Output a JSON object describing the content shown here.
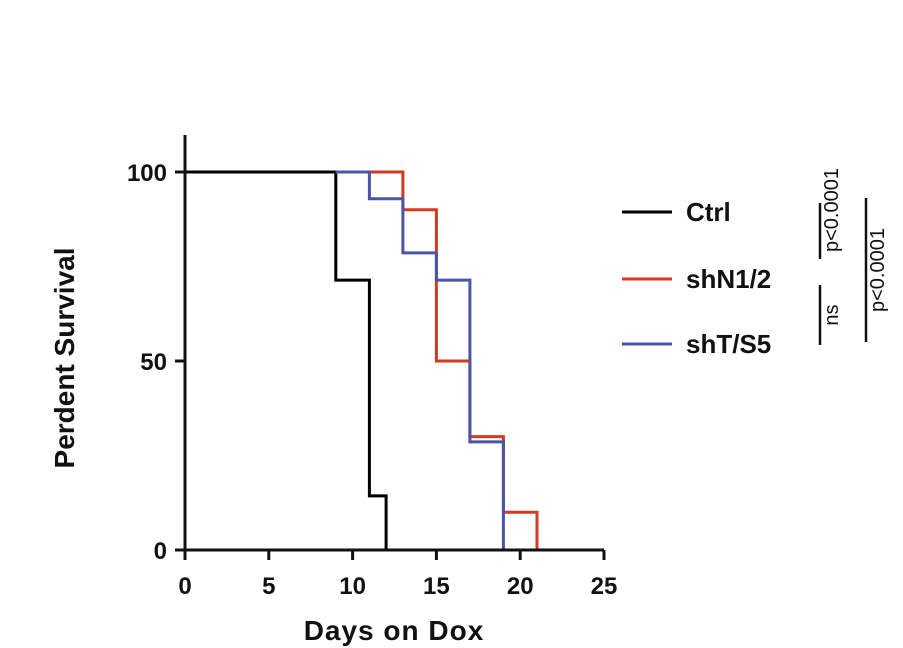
{
  "chart_data": {
    "type": "line",
    "subtype": "kaplan-meier-step",
    "xlabel": "Days on Dox",
    "ylabel": "Perdent Survival",
    "xlim": [
      0,
      25
    ],
    "ylim": [
      0,
      100
    ],
    "xticks": [
      0,
      5,
      10,
      15,
      20,
      25
    ],
    "yticks": [
      0,
      50,
      100
    ],
    "grid": false,
    "legend_position": "right",
    "series": [
      {
        "name": "Ctrl",
        "color": "#000000",
        "steps": [
          [
            0,
            100
          ],
          [
            9,
            100
          ],
          [
            9,
            71.4
          ],
          [
            11,
            71.4
          ],
          [
            11,
            14.3
          ],
          [
            12,
            14.3
          ],
          [
            12,
            0
          ]
        ]
      },
      {
        "name": "shN1/2",
        "color": "#d63a1e",
        "steps": [
          [
            9,
            100
          ],
          [
            13,
            100
          ],
          [
            13,
            90
          ],
          [
            15,
            90
          ],
          [
            15,
            50
          ],
          [
            17,
            50
          ],
          [
            17,
            30
          ],
          [
            19,
            30
          ],
          [
            19,
            10
          ],
          [
            21,
            10
          ],
          [
            21,
            0
          ]
        ]
      },
      {
        "name": "shT/S5",
        "color": "#4a55a8",
        "steps": [
          [
            9,
            100
          ],
          [
            11,
            100
          ],
          [
            11,
            92.9
          ],
          [
            13,
            92.9
          ],
          [
            13,
            78.6
          ],
          [
            15,
            78.6
          ],
          [
            15,
            71.4
          ],
          [
            17,
            71.4
          ],
          [
            17,
            28.6
          ],
          [
            19,
            28.6
          ],
          [
            19,
            0
          ]
        ]
      }
    ],
    "annotations": [
      {
        "text": "ns",
        "bracket": "shN1/2 vs shT/S5"
      },
      {
        "text": "p<0.0001",
        "bracket": "Ctrl vs shN1/2"
      },
      {
        "text": "p<0.0001",
        "bracket": "Ctrl vs shT/S5"
      }
    ]
  }
}
